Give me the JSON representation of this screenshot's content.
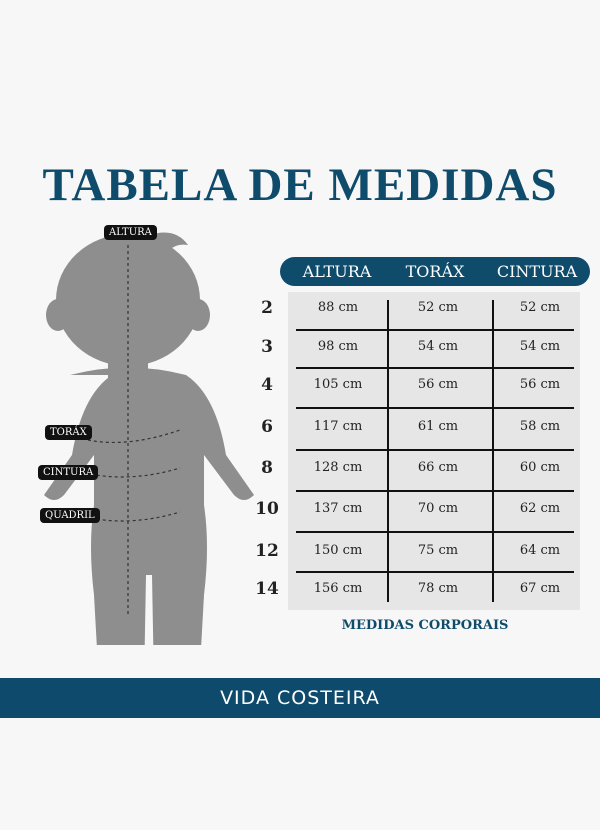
{
  "title": "TABELA DE MEDIDAS",
  "figure_labels": {
    "altura": "ALTURA",
    "torax": "TORÁX",
    "cintura": "CINTURA",
    "quadril": "QUADRIL"
  },
  "table": {
    "headers": [
      "ALTURA",
      "TORÁX",
      "CINTURA"
    ],
    "rows": [
      {
        "size": "2",
        "altura": "88 cm",
        "torax": "52 cm",
        "cintura": "52 cm"
      },
      {
        "size": "3",
        "altura": "98 cm",
        "torax": "54 cm",
        "cintura": "54 cm"
      },
      {
        "size": "4",
        "altura": "105 cm",
        "torax": "56 cm",
        "cintura": "56 cm"
      },
      {
        "size": "6",
        "altura": "117 cm",
        "torax": "61 cm",
        "cintura": "58 cm"
      },
      {
        "size": "8",
        "altura": "128 cm",
        "torax": "66 cm",
        "cintura": "60 cm"
      },
      {
        "size": "10",
        "altura": "137 cm",
        "torax": "70 cm",
        "cintura": "62 cm"
      },
      {
        "size": "12",
        "altura": "150 cm",
        "torax": "75 cm",
        "cintura": "64 cm"
      },
      {
        "size": "14",
        "altura": "156 cm",
        "torax": "78 cm",
        "cintura": "67 cm"
      }
    ],
    "caption": "MEDIDAS CORPORAIS"
  },
  "brand": "VIDA COSTEIRA",
  "colors": {
    "primary": "#0f4b6b",
    "figure": "#8e8e8e",
    "table_bg": "#e6e6e6"
  }
}
